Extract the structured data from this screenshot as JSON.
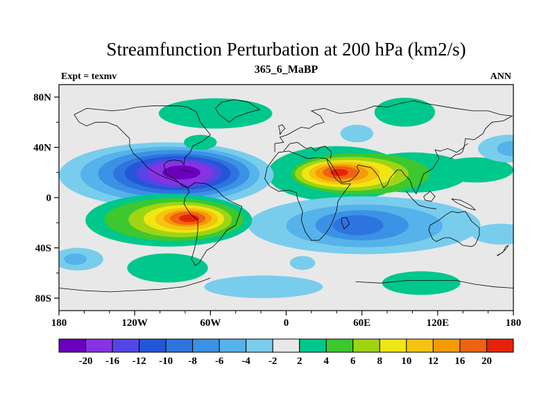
{
  "chart_data": {
    "type": "filled-contour-map",
    "title": "Streamfunction Perturbation at 200 hPa (km2/s)",
    "subtitle": "365_6_MaBP",
    "left_label": "Expt = texmv",
    "right_label": "ANN",
    "level": "200 hPa",
    "units": "km2/s",
    "lon_range": [
      -180,
      180
    ],
    "lat_range": [
      -90,
      90
    ],
    "background_color": "#e8e8e8",
    "levels": [
      -20,
      -16,
      -12,
      -10,
      -8,
      -6,
      -4,
      -2,
      2,
      4,
      6,
      8,
      10,
      12,
      16,
      20
    ],
    "palette": [
      "#6a00bd",
      "#8733e3",
      "#5346e6",
      "#2456d8",
      "#2e74de",
      "#3b92e4",
      "#55b2ea",
      "#79cdec",
      "#e8e8e8",
      "#00c78c",
      "#3cc82e",
      "#9fd414",
      "#efe614",
      "#f4c410",
      "#f49b07",
      "#ef6212",
      "#e62309"
    ],
    "colorbar_labels": [
      "-20",
      "-16",
      "-12",
      "-10",
      "-8",
      "-6",
      "-4",
      "-2",
      "2",
      "4",
      "6",
      "8",
      "10",
      "12",
      "16",
      "20"
    ],
    "x_axis": {
      "ticks": [
        {
          "label": "180",
          "lon": -180
        },
        {
          "label": "120W",
          "lon": -120
        },
        {
          "label": "60W",
          "lon": -60
        },
        {
          "label": "0",
          "lon": 0
        },
        {
          "label": "60E",
          "lon": 60
        },
        {
          "label": "120E",
          "lon": 120
        },
        {
          "label": "180",
          "lon": 180
        }
      ],
      "minor_step": 20
    },
    "y_axis": {
      "ticks": [
        {
          "label": "80N",
          "lat": 80
        },
        {
          "label": "40N",
          "lat": 40
        },
        {
          "label": "0",
          "lat": 0
        },
        {
          "label": "40S",
          "lat": -40
        },
        {
          "label": "80S",
          "lat": -80
        }
      ],
      "minor_step": 20
    },
    "features": [
      {
        "name": "north-africa-asia-positive",
        "sign": 1,
        "peak_level": 20,
        "ellipses": [
          {
            "bin": 9,
            "lon": 40,
            "lat": 19,
            "rlon": 55,
            "rlat": 22
          },
          {
            "bin": 9,
            "lon": 100,
            "lat": 20,
            "rlon": 45,
            "rlat": 16
          },
          {
            "bin": 9,
            "lon": 150,
            "lat": 22,
            "rlon": 30,
            "rlat": 10
          },
          {
            "bin": 10,
            "lon": 59,
            "lat": 19,
            "rlon": 55,
            "rlat": 16.5
          },
          {
            "bin": 11,
            "lon": 52,
            "lat": 19,
            "rlon": 45,
            "rlat": 13.5
          },
          {
            "bin": 12,
            "lon": 49,
            "lat": 19,
            "rlon": 37,
            "rlat": 11
          },
          {
            "bin": 13,
            "lon": 46,
            "lat": 19.5,
            "rlon": 28,
            "rlat": 9
          },
          {
            "bin": 14,
            "lon": 44,
            "lat": 19.5,
            "rlon": 21,
            "rlat": 7
          },
          {
            "bin": 15,
            "lon": 43,
            "lat": 20,
            "rlon": 14,
            "rlat": 5
          },
          {
            "bin": 16,
            "lon": 42,
            "lat": 20,
            "rlon": 7,
            "rlat": 2.8
          }
        ]
      },
      {
        "name": "north-pacific-negative",
        "sign": -1,
        "peak_level": -20,
        "ellipses": [
          {
            "bin": 7,
            "lon": -95,
            "lat": 18,
            "rlon": 85,
            "rlat": 26
          },
          {
            "bin": 6,
            "lon": -92,
            "lat": 18.5,
            "rlon": 71,
            "rlat": 22
          },
          {
            "bin": 5,
            "lon": -89,
            "lat": 19,
            "rlon": 60,
            "rlat": 19
          },
          {
            "bin": 4,
            "lon": -87,
            "lat": 19,
            "rlon": 50,
            "rlat": 16
          },
          {
            "bin": 3,
            "lon": -86,
            "lat": 19.5,
            "rlon": 42,
            "rlat": 13.5
          },
          {
            "bin": 2,
            "lon": -85,
            "lat": 19.5,
            "rlon": 34,
            "rlat": 11.5
          },
          {
            "bin": 1,
            "lon": -84,
            "lat": 19.5,
            "rlon": 26,
            "rlat": 9.5
          },
          {
            "bin": 0,
            "lon": -83,
            "lat": 20,
            "rlon": 15,
            "rlat": 5.5
          }
        ]
      },
      {
        "name": "south-indian-negative",
        "sign": -1,
        "peak_level": -10,
        "ellipses": [
          {
            "bin": 7,
            "lon": 62,
            "lat": -22,
            "rlon": 92,
            "rlat": 23
          },
          {
            "bin": 6,
            "lon": 62,
            "lat": -22.5,
            "rlon": 62,
            "rlat": 17
          },
          {
            "bin": 5,
            "lon": 60,
            "lat": -22,
            "rlon": 37,
            "rlat": 12
          },
          {
            "bin": 4,
            "lon": 57,
            "lat": -22,
            "rlon": 20,
            "rlat": 8
          }
        ]
      },
      {
        "name": "south-america-positive",
        "sign": 1,
        "peak_level": 20,
        "ellipses": [
          {
            "bin": 9,
            "lon": -93,
            "lat": -18,
            "rlon": 66,
            "rlat": 21
          },
          {
            "bin": 10,
            "lon": -89,
            "lat": -17.5,
            "rlon": 55,
            "rlat": 17
          },
          {
            "bin": 11,
            "lon": -84,
            "lat": -17.5,
            "rlon": 41,
            "rlat": 14
          },
          {
            "bin": 12,
            "lon": -81,
            "lat": -17,
            "rlon": 32,
            "rlat": 11
          },
          {
            "bin": 13,
            "lon": -79,
            "lat": -17,
            "rlon": 25,
            "rlat": 9
          },
          {
            "bin": 14,
            "lon": -78,
            "lat": -16.5,
            "rlon": 19,
            "rlat": 6.6
          },
          {
            "bin": 15,
            "lon": -78,
            "lat": -16.5,
            "rlon": 14,
            "rlat": 5.2
          },
          {
            "bin": 16,
            "lon": -77,
            "lat": -16.5,
            "rlon": 8,
            "rlat": 3
          }
        ]
      },
      {
        "name": "west-pacific-edge-negative",
        "sign": -1,
        "peak_level": -6,
        "ellipses": [
          {
            "bin": 7,
            "lon": 177,
            "lat": 39,
            "rlon": 25,
            "rlat": 11
          },
          {
            "bin": 6,
            "lon": 179,
            "lat": 39,
            "rlon": 12,
            "rlat": 6
          }
        ]
      },
      {
        "name": "central-asia-negative-spot",
        "sign": -1,
        "peak_level": -4,
        "ellipses": [
          {
            "bin": 7,
            "lon": 56,
            "lat": 51,
            "rlon": 13,
            "rlat": 7
          }
        ]
      },
      {
        "name": "north-atlantic-green-spot",
        "sign": 1,
        "peak_level": 4,
        "ellipses": [
          {
            "bin": 9,
            "lon": -68,
            "lat": 44,
            "rlon": 13,
            "rlat": 6
          }
        ]
      },
      {
        "name": "arctic-canada-green",
        "sign": 1,
        "peak_level": 4,
        "ellipses": [
          {
            "bin": 9,
            "lon": -56,
            "lat": 67,
            "rlon": 45,
            "rlat": 12
          }
        ]
      },
      {
        "name": "arctic-siberia-green",
        "sign": 1,
        "peak_level": 4,
        "ellipses": [
          {
            "bin": 9,
            "lon": 94,
            "lat": 68,
            "rlon": 24,
            "rlat": 11.5
          }
        ]
      },
      {
        "name": "south-pacific-west-negative",
        "sign": -1,
        "peak_level": -6,
        "ellipses": [
          {
            "bin": 7,
            "lon": -165,
            "lat": -49,
            "rlon": 20,
            "rlat": 9
          },
          {
            "bin": 6,
            "lon": -167,
            "lat": -49,
            "rlon": 9,
            "rlat": 4.5
          }
        ]
      },
      {
        "name": "southeast-pacific-green",
        "sign": 1,
        "peak_level": 4,
        "ellipses": [
          {
            "bin": 9,
            "lon": -94,
            "lat": -56,
            "rlon": 32,
            "rlat": 11.6
          }
        ]
      },
      {
        "name": "south-atlantic-negative",
        "sign": -1,
        "peak_level": -4,
        "ellipses": [
          {
            "bin": 7,
            "lon": -18,
            "lat": -71,
            "rlon": 47,
            "rlat": 9
          }
        ]
      },
      {
        "name": "south-australia-green",
        "sign": 1,
        "peak_level": 4,
        "ellipses": [
          {
            "bin": 9,
            "lon": 107,
            "lat": -68,
            "rlon": 31,
            "rlat": 9.4
          }
        ]
      },
      {
        "name": "south-pacific-east-negative",
        "sign": -1,
        "peak_level": -4,
        "ellipses": [
          {
            "bin": 7,
            "lon": 170,
            "lat": -29,
            "rlon": 23,
            "rlat": 8.3
          }
        ]
      },
      {
        "name": "south-africa-negative-spot",
        "sign": -1,
        "peak_level": -4,
        "ellipses": [
          {
            "bin": 7,
            "lon": 13,
            "lat": -52,
            "rlon": 10,
            "rlat": 5.5
          }
        ]
      }
    ]
  }
}
